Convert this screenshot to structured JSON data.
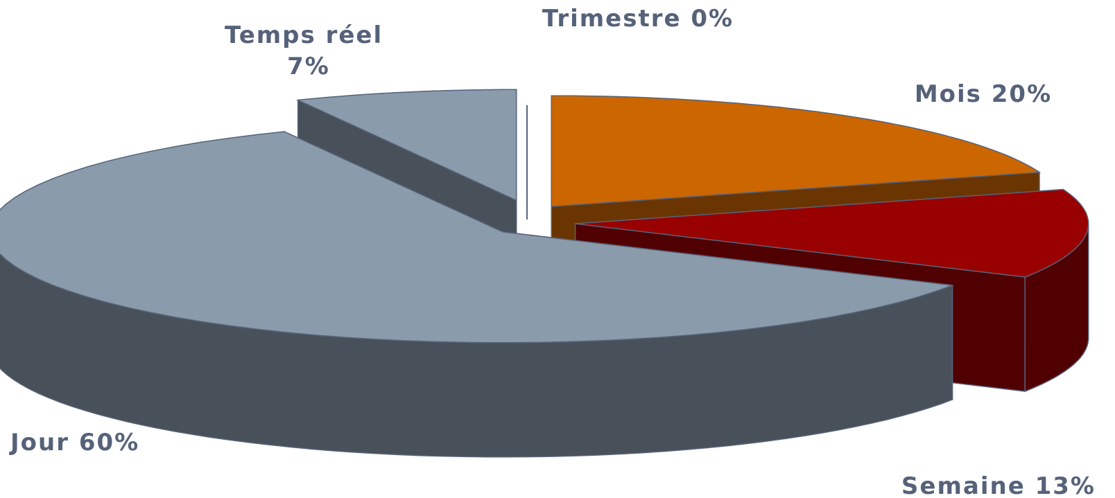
{
  "chart_data": {
    "type": "pie",
    "style": "3d-exploded",
    "title": "",
    "legend": "none",
    "slices": [
      {
        "label": "Trimestre",
        "percent_text": "0%",
        "value": 0,
        "color": "#8a9aab"
      },
      {
        "label": "Mois",
        "percent_text": "20%",
        "value": 20,
        "color": "#cc6600"
      },
      {
        "label": "Semaine",
        "percent_text": "13%",
        "value": 13,
        "color": "#990000"
      },
      {
        "label": "Jour",
        "percent_text": "60%",
        "value": 60,
        "color": "#8a9bab"
      },
      {
        "label": "Temps réel",
        "percent_text": "7%",
        "value": 7,
        "color": "#8a9bab"
      }
    ]
  }
}
